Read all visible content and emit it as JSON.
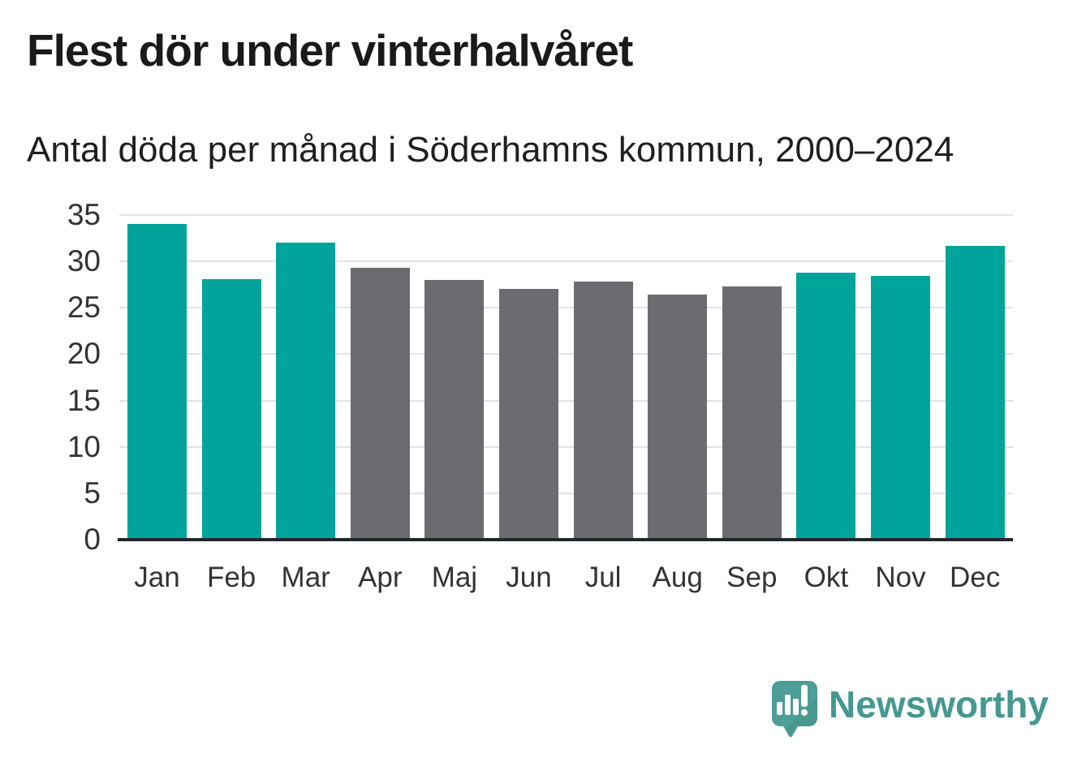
{
  "chart_data": {
    "type": "bar",
    "title": "Flest dör under vinterhalvåret",
    "subtitle": "Antal döda per månad i Söderhamns kommun, 2000–2024",
    "categories": [
      "Jan",
      "Feb",
      "Mar",
      "Apr",
      "Maj",
      "Jun",
      "Jul",
      "Aug",
      "Sep",
      "Okt",
      "Nov",
      "Dec"
    ],
    "values": [
      34.0,
      28.1,
      32.0,
      29.3,
      28.0,
      27.0,
      27.8,
      26.4,
      27.3,
      28.8,
      28.4,
      31.7
    ],
    "highlighted_months": [
      true,
      true,
      true,
      false,
      false,
      false,
      false,
      false,
      false,
      true,
      true,
      true
    ],
    "colors": {
      "highlight": "#00a49a",
      "normal": "#6b6b70",
      "gridline": "#e3e3e3",
      "axis": "#24272a"
    },
    "xlabel": "",
    "ylabel": "",
    "ylim": [
      0,
      35
    ],
    "yticks": [
      0,
      5,
      10,
      15,
      20,
      25,
      30,
      35
    ],
    "grid": true,
    "legend": "none"
  },
  "footer": {
    "brand": "Newsworthy",
    "logo_color": "#4d9e96",
    "logo_shade_color": "#46948c",
    "text_color": "#45988f"
  }
}
